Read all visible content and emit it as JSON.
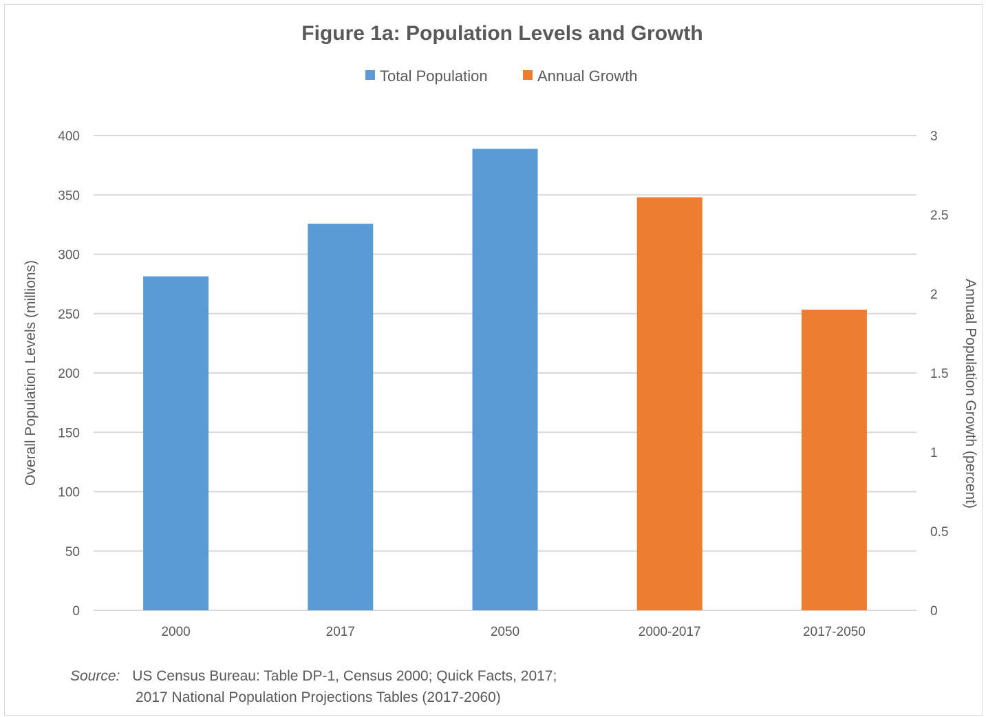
{
  "chart_data": {
    "type": "bar",
    "title": "Figure 1a: Population Levels and Growth",
    "categories": [
      "2000",
      "2017",
      "2050",
      "2000-2017",
      "2017-2050"
    ],
    "series": [
      {
        "name": "Total Population",
        "axis": "left",
        "color": "#5b9bd5",
        "values": [
          281.4,
          325.7,
          388.9,
          null,
          null
        ]
      },
      {
        "name": "Annual Growth",
        "axis": "right",
        "color": "#ed7d31",
        "values": [
          null,
          null,
          null,
          2.61,
          1.9
        ]
      }
    ],
    "yaxis_left": {
      "label": "Overall Population Levels (millions)",
      "ylim": [
        0,
        400
      ],
      "ticks": [
        "0",
        "50",
        "100",
        "150",
        "200",
        "250",
        "300",
        "350",
        "400"
      ]
    },
    "yaxis_right": {
      "label": "Annual Population Growth (percent)",
      "ylim": [
        0,
        3
      ],
      "ticks": [
        "0",
        "0.5",
        "1",
        "1.5",
        "2",
        "2.5",
        "3"
      ]
    },
    "grid": true,
    "legend_position": "top-center"
  },
  "source": {
    "label": "Source:",
    "line1": "US Census Bureau: Table DP-1, Census 2000; Quick Facts, 2017;",
    "line2": "2017 National Population Projections Tables (2017-2060)"
  }
}
